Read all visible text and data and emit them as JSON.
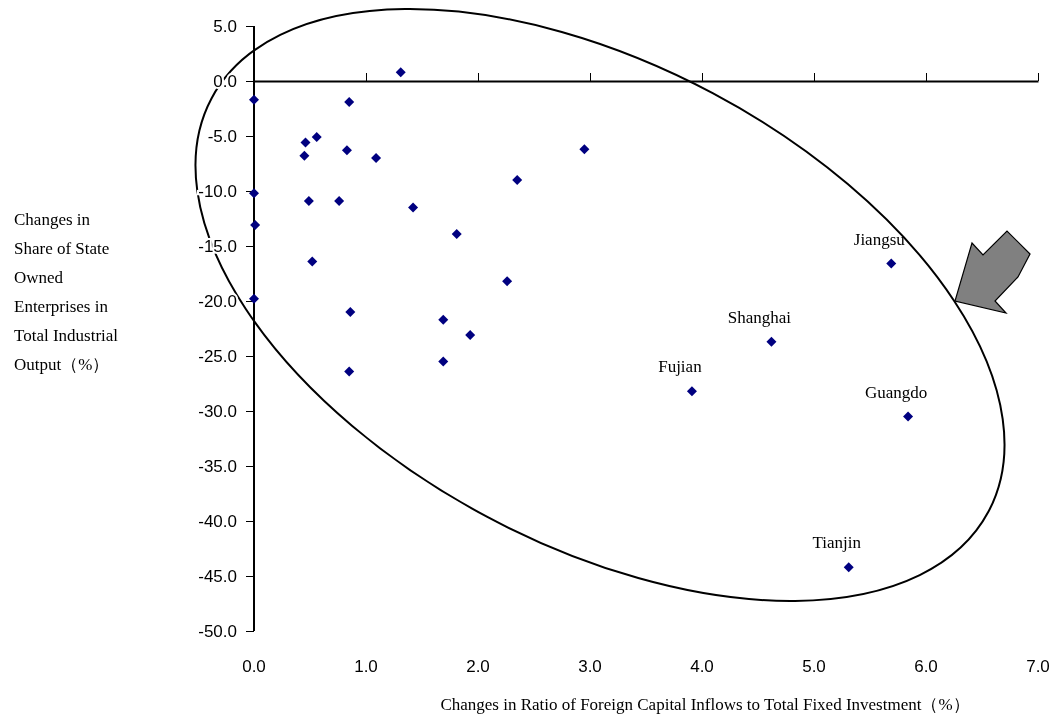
{
  "chart_data": {
    "type": "scatter",
    "xlabel": "Changes in Ratio of Foreign Capital Inflows to Total Fixed Investment（%）",
    "ylabel": "Changes in Share of State Owned Enterprises in Total Industrial Output（%）",
    "x": [
      1.31,
      0.0,
      0.85,
      0.56,
      0.46,
      0.45,
      0.83,
      1.09,
      2.35,
      2.95,
      0.0,
      0.49,
      0.76,
      1.42,
      0.01,
      1.81,
      0.52,
      2.26,
      0.0,
      0.86,
      1.69,
      1.93,
      1.69,
      0.85,
      5.69,
      4.62,
      5.84,
      3.91,
      5.31
    ],
    "values": [
      0.8,
      -1.7,
      -1.9,
      -5.1,
      -5.6,
      -6.8,
      -6.3,
      -7.0,
      -9.0,
      -6.2,
      -10.2,
      -10.9,
      -10.9,
      -11.5,
      -13.1,
      -13.9,
      -16.4,
      -18.2,
      -19.8,
      -21.0,
      -21.7,
      -23.1,
      -25.5,
      -26.4,
      -16.6,
      -23.7,
      -30.5,
      -28.2,
      -44.2
    ],
    "color": "#000080",
    "marker": "diamond",
    "xlim": [
      0,
      7
    ],
    "xticks": [
      {
        "value": 0,
        "label": "0.0"
      },
      {
        "value": 1,
        "label": "1.0"
      },
      {
        "value": 2,
        "label": "2.0"
      },
      {
        "value": 3,
        "label": "3.0"
      },
      {
        "value": 4,
        "label": "4.0"
      },
      {
        "value": 5,
        "label": "5.0"
      },
      {
        "value": 6,
        "label": "6.0"
      },
      {
        "value": 7,
        "label": "7.0"
      }
    ],
    "ylim": [
      -50,
      5
    ],
    "yticks": [
      {
        "value": 5,
        "label": "5.0"
      },
      {
        "value": 0,
        "label": "0.0"
      },
      {
        "value": -5,
        "label": "-5.0"
      },
      {
        "value": -10,
        "label": "-10.0"
      },
      {
        "value": -15,
        "label": "-15.0"
      },
      {
        "value": -20,
        "label": "-20.0"
      },
      {
        "value": -25,
        "label": "-25.0"
      },
      {
        "value": -30,
        "label": "-30.0"
      },
      {
        "value": -35,
        "label": "-35.0"
      },
      {
        "value": -40,
        "label": "-40.0"
      },
      {
        "value": -45,
        "label": "-45.0"
      },
      {
        "value": -50,
        "label": "-50.0"
      }
    ],
    "annotations": [
      {
        "text": "Jiangsu",
        "x": 5.69,
        "y": -16.6
      },
      {
        "text": "Shanghai",
        "x": 4.62,
        "y": -23.7
      },
      {
        "text": "Guangdo",
        "x": 5.84,
        "y": -30.5
      },
      {
        "text": "Fujian",
        "x": 3.91,
        "y": -28.2
      },
      {
        "text": "Tianjin",
        "x": 5.31,
        "y": -44.2
      }
    ]
  }
}
